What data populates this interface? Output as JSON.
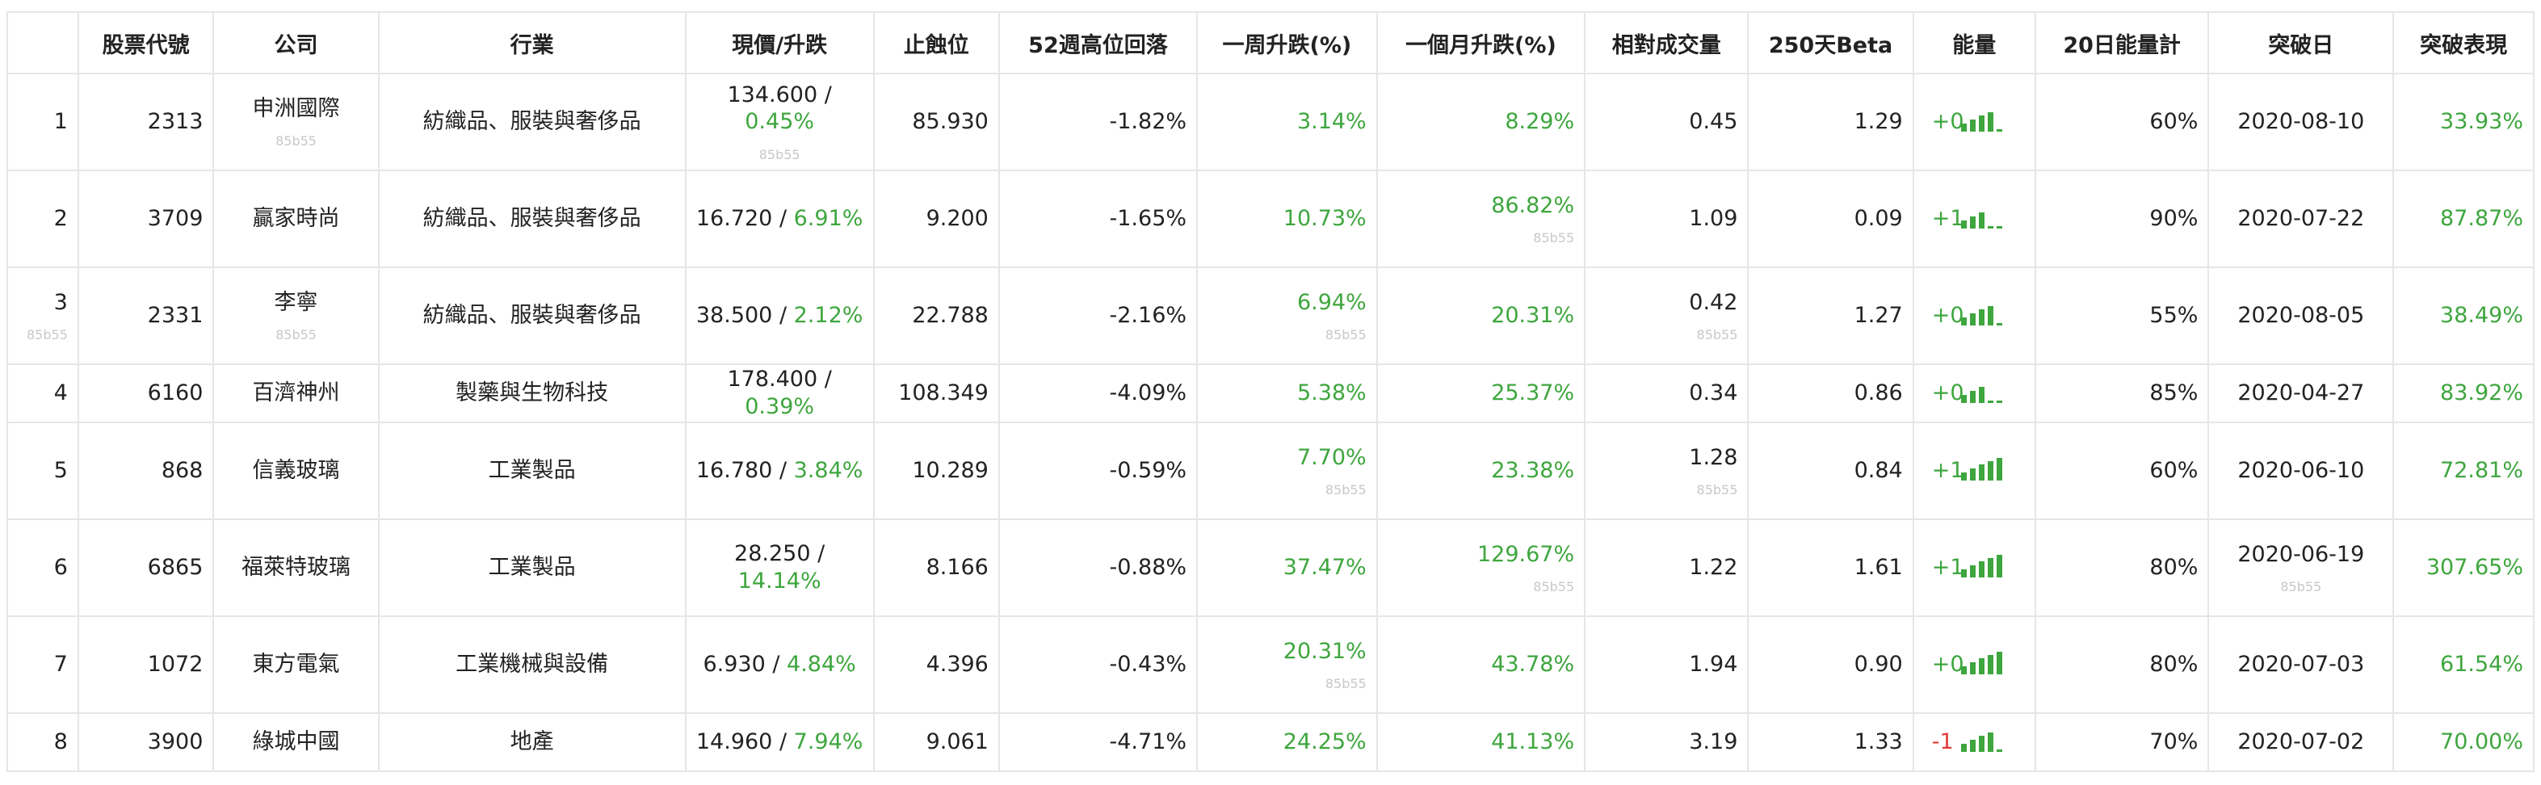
{
  "colors": {
    "positive": "#3ea63e",
    "negative": "#e53935",
    "border": "#e6e6e6",
    "subtext": "#c8c8c8"
  },
  "headers": [
    "",
    "股票代號",
    "公司",
    "行業",
    "現價/升跌",
    "止蝕位",
    "52週高位回落",
    "一周升跌(%)",
    "一個月升跌(%)",
    "相對成交量",
    "250天Beta",
    "能量",
    "20日能量計",
    "突破日",
    "突破表現"
  ],
  "rows": [
    {
      "idx": "1",
      "code": "2313",
      "company": "申洲國際",
      "company_sub": "85b55",
      "industry": "紡織品、服裝與奢侈品",
      "price": "134.600",
      "sep": " / ",
      "change": "0.45%",
      "price_sub": "85b55",
      "stop": "85.930",
      "drawdown": "-1.82%",
      "week": "3.14%",
      "month": "8.29%",
      "relvol": "0.45",
      "beta": "1.29",
      "energy": "+0",
      "energy_sign": "pos",
      "energy_bars": [
        1,
        1,
        1,
        1,
        0
      ],
      "meter": "60%",
      "bdate": "2020-08-10",
      "bperf": "33.93%"
    },
    {
      "idx": "2",
      "code": "3709",
      "company": "贏家時尚",
      "industry": "紡織品、服裝與奢侈品",
      "price": "16.720",
      "sep": " / ",
      "change": "6.91%",
      "stop": "9.200",
      "drawdown": "-1.65%",
      "week": "10.73%",
      "month": "86.82%",
      "month_sub": "85b55",
      "relvol": "1.09",
      "beta": "0.09",
      "energy": "+1",
      "energy_sign": "pos",
      "energy_bars": [
        1,
        1,
        1,
        0,
        0
      ],
      "meter": "90%",
      "bdate": "2020-07-22",
      "bperf": "87.87%"
    },
    {
      "idx": "3",
      "idx_sub": "85b55",
      "code": "2331",
      "company": "李寧",
      "company_sub": "85b55",
      "industry": "紡織品、服裝與奢侈品",
      "price": "38.500",
      "sep": " / ",
      "change": "2.12%",
      "stop": "22.788",
      "drawdown": "-2.16%",
      "week": "6.94%",
      "week_sub": "85b55",
      "month": "20.31%",
      "relvol": "0.42",
      "relvol_sub": "85b55",
      "beta": "1.27",
      "energy": "+0",
      "energy_sign": "pos",
      "energy_bars": [
        1,
        1,
        1,
        1,
        0
      ],
      "meter": "55%",
      "bdate": "2020-08-05",
      "bperf": "38.49%"
    },
    {
      "idx": "4",
      "code": "6160",
      "company": "百濟神州",
      "industry": "製藥與生物科技",
      "price": "178.400",
      "sep": " / ",
      "change": "0.39%",
      "stop": "108.349",
      "drawdown": "-4.09%",
      "week": "5.38%",
      "month": "25.37%",
      "relvol": "0.34",
      "beta": "0.86",
      "energy": "+0",
      "energy_sign": "pos",
      "energy_bars": [
        1,
        1,
        1,
        0,
        0
      ],
      "meter": "85%",
      "bdate": "2020-04-27",
      "bperf": "83.92%"
    },
    {
      "idx": "5",
      "code": "868",
      "company": "信義玻璃",
      "industry": "工業製品",
      "price": "16.780",
      "sep": " / ",
      "change": "3.84%",
      "stop": "10.289",
      "drawdown": "-0.59%",
      "week": "7.70%",
      "week_sub": "85b55",
      "month": "23.38%",
      "relvol": "1.28",
      "relvol_sub": "85b55",
      "beta": "0.84",
      "energy": "+1",
      "energy_sign": "pos",
      "energy_bars": [
        1,
        1,
        1,
        1,
        1
      ],
      "meter": "60%",
      "bdate": "2020-06-10",
      "bperf": "72.81%"
    },
    {
      "idx": "6",
      "code": "6865",
      "company": "福萊特玻璃",
      "industry": "工業製品",
      "price": "28.250",
      "sep": " / ",
      "change": "14.14%",
      "stop": "8.166",
      "drawdown": "-0.88%",
      "week": "37.47%",
      "month": "129.67%",
      "month_sub": "85b55",
      "relvol": "1.22",
      "beta": "1.61",
      "energy": "+1",
      "energy_sign": "pos",
      "energy_bars": [
        1,
        1,
        1,
        1,
        1
      ],
      "meter": "80%",
      "bdate": "2020-06-19",
      "bdate_sub": "85b55",
      "bperf": "307.65%"
    },
    {
      "idx": "7",
      "code": "1072",
      "company": "東方電氣",
      "industry": "工業機械與設備",
      "price": "6.930",
      "sep": " / ",
      "change": "4.84%",
      "stop": "4.396",
      "drawdown": "-0.43%",
      "week": "20.31%",
      "week_sub": "85b55",
      "month": "43.78%",
      "relvol": "1.94",
      "beta": "0.90",
      "energy": "+0",
      "energy_sign": "pos",
      "energy_bars": [
        1,
        1,
        1,
        1,
        1
      ],
      "meter": "80%",
      "bdate": "2020-07-03",
      "bperf": "61.54%"
    },
    {
      "idx": "8",
      "code": "3900",
      "company": "綠城中國",
      "industry": "地產",
      "price": "14.960",
      "sep": " / ",
      "change": "7.94%",
      "stop": "9.061",
      "drawdown": "-4.71%",
      "week": "24.25%",
      "month": "41.13%",
      "relvol": "3.19",
      "beta": "1.33",
      "energy": "-1",
      "energy_sign": "neg",
      "energy_bars": [
        1,
        1,
        1,
        1,
        0
      ],
      "meter": "70%",
      "bdate": "2020-07-02",
      "bperf": "70.00%"
    }
  ]
}
